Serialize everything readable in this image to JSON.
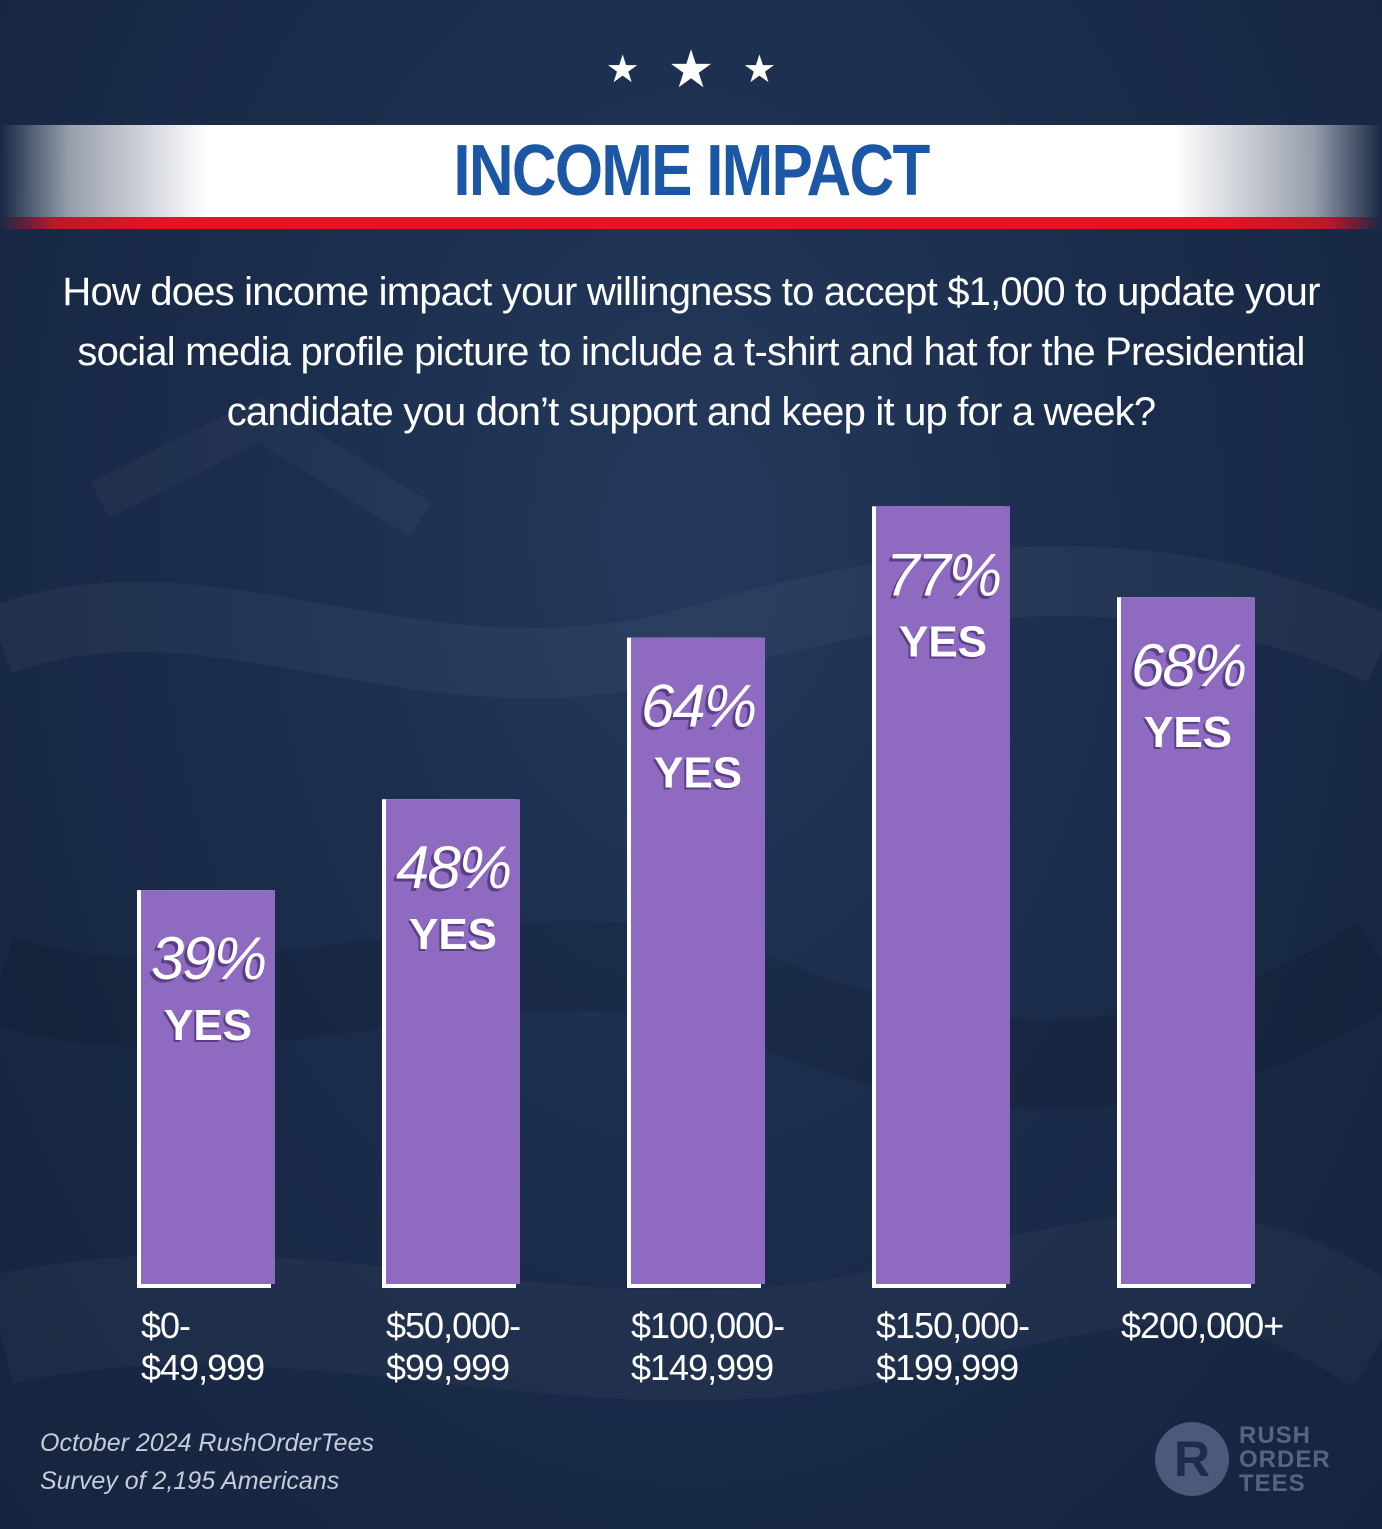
{
  "title": "INCOME IMPACT",
  "question": "How does income impact your willingness to accept $1,000 to update your social media profile picture to include a t-shirt and hat for the Presidential candidate you don’t support and keep it up for a week?",
  "footer": {
    "line1": "October 2024 RushOrderTees",
    "line2": "Survey of 2,195 Americans"
  },
  "logo": {
    "mark": "R",
    "line1": "RUSH",
    "line2": "ORDER",
    "line3": "TEES"
  },
  "colors": {
    "background": "#1b2d4c",
    "bar_fill": "#8e6bc0",
    "bar_shadow": "#ffffff",
    "title_blue": "#1c57a5",
    "banner_red": "#e81226"
  },
  "icons": [
    "star-icon",
    "star-icon",
    "star-icon"
  ],
  "chart_data": {
    "type": "bar",
    "title": "INCOME IMPACT",
    "categories": [
      [
        "$0-",
        "$49,999"
      ],
      [
        "$50,000-",
        "$99,999"
      ],
      [
        "$100,000-",
        "$149,999"
      ],
      [
        "$150,000-",
        "$199,999"
      ],
      [
        "$200,000+"
      ]
    ],
    "values": [
      39,
      48,
      64,
      77,
      68
    ],
    "data_labels": [
      "39%",
      "48%",
      "64%",
      "77%",
      "68%"
    ],
    "data_sublabel": "YES",
    "unit": "%",
    "xlabel": "",
    "ylabel": "",
    "ylim": [
      0,
      100
    ],
    "grid": false,
    "legend": "none"
  }
}
